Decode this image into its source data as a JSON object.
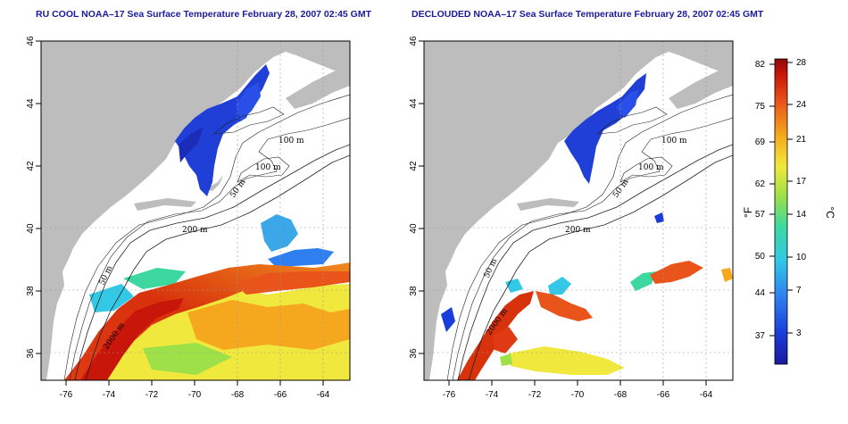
{
  "panels": [
    {
      "title": "RU COOL NOAA–17 Sea Surface Temperature February 28, 2007 02:45 GMT",
      "y_ticks": [
        "46",
        "44",
        "42",
        "40",
        "38",
        "36"
      ],
      "x_ticks": [
        "-76",
        "-74",
        "-72",
        "-70",
        "-68",
        "-66",
        "-64"
      ],
      "contour_labels": [
        "100 m",
        "100 m",
        "50 m",
        "200 m",
        "50 m",
        "2000 m"
      ]
    },
    {
      "title": "DECLOUDED NOAA–17 Sea Surface Temperature February 28, 2007 02:45 GMT",
      "y_ticks": [
        "46",
        "44",
        "42",
        "40",
        "38",
        "36"
      ],
      "x_ticks": [
        "-76",
        "-74",
        "-72",
        "-70",
        "-68",
        "-66",
        "-64"
      ],
      "contour_labels": [
        "100 m",
        "100 m",
        "50 m",
        "200 m",
        "50 m",
        "2000 m"
      ]
    }
  ],
  "colorbar": {
    "f_ticks": [
      "82",
      "75",
      "69",
      "62",
      "57",
      "50",
      "44",
      "37"
    ],
    "c_ticks": [
      "28",
      "24",
      "21",
      "17",
      "14",
      "10",
      "7",
      "3"
    ],
    "f_label": "°F",
    "c_label": "°C",
    "colors": [
      "#1a1a9c",
      "#1a3cd8",
      "#2f7ff0",
      "#32c8e6",
      "#3cd8a0",
      "#9ee048",
      "#f0e83c",
      "#f5a81e",
      "#e8541a",
      "#c8160a",
      "#8c0a0a"
    ]
  },
  "colors": {
    "land": "#bdbdbd",
    "title": "#1a1a9c"
  }
}
